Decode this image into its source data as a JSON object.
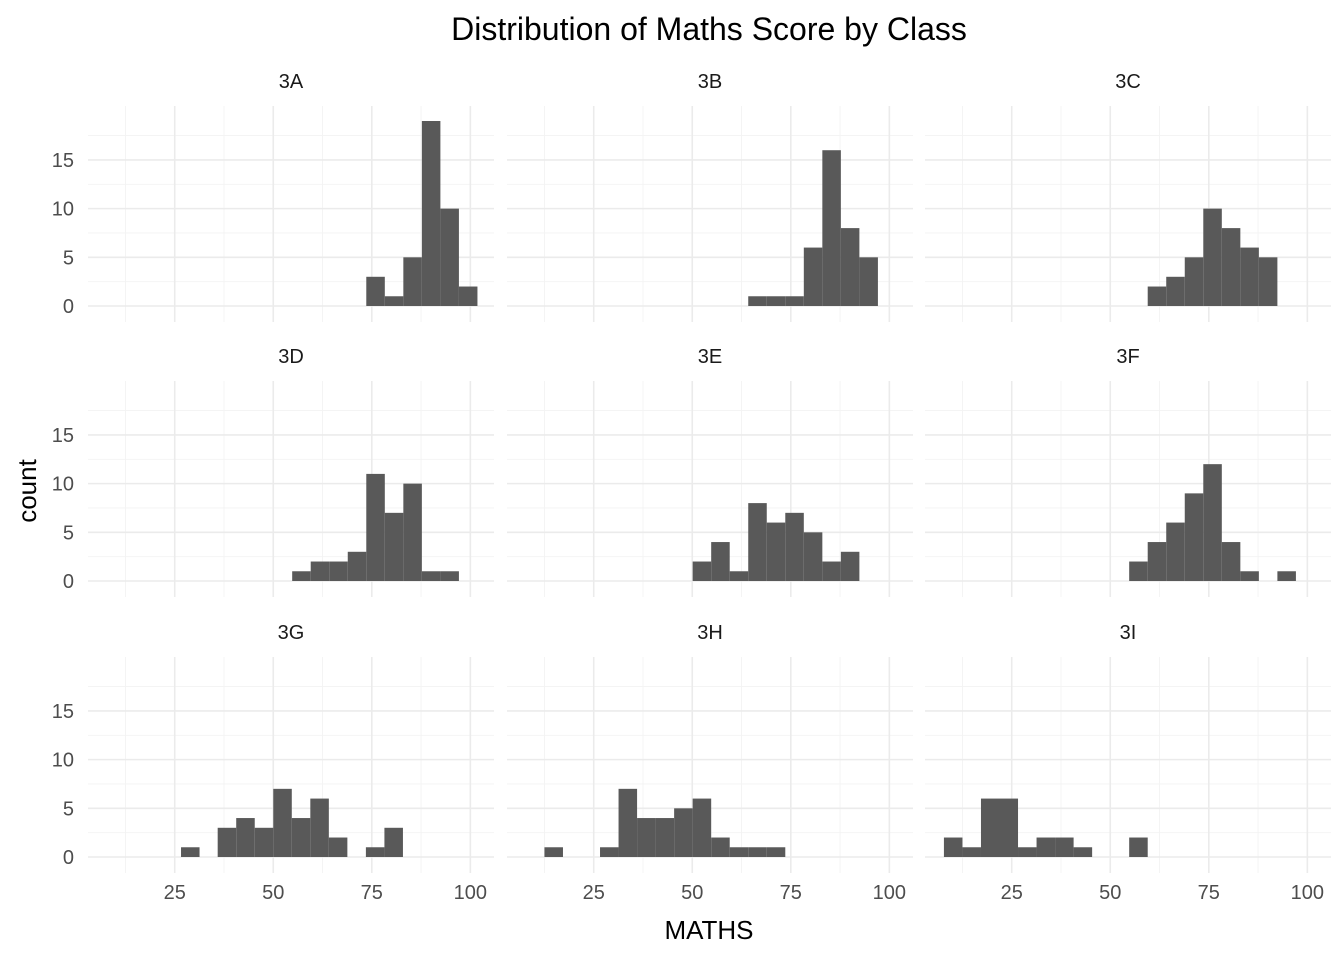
{
  "chart_data": {
    "type": "bar",
    "title": "Distribution of Maths Score by Class",
    "xlabel": "MATHS",
    "ylabel": "count",
    "xlim": [
      3,
      106
    ],
    "ylim": [
      0,
      19
    ],
    "x_ticks": [
      25,
      50,
      75,
      100
    ],
    "y_ticks": [
      0,
      5,
      10,
      15
    ],
    "grid": true,
    "bin_width": 4.7,
    "panels": [
      {
        "name": "3A",
        "bins": [
          {
            "x0": 73.6,
            "count": 3
          },
          {
            "x0": 78.3,
            "count": 1
          },
          {
            "x0": 83.0,
            "count": 5
          },
          {
            "x0": 87.7,
            "count": 19
          },
          {
            "x0": 92.4,
            "count": 10
          },
          {
            "x0": 97.1,
            "count": 2
          }
        ]
      },
      {
        "name": "3B",
        "bins": [
          {
            "x0": 64.2,
            "count": 1
          },
          {
            "x0": 68.9,
            "count": 1
          },
          {
            "x0": 73.6,
            "count": 1
          },
          {
            "x0": 78.3,
            "count": 6
          },
          {
            "x0": 83.0,
            "count": 16
          },
          {
            "x0": 87.7,
            "count": 8
          },
          {
            "x0": 92.4,
            "count": 5
          }
        ]
      },
      {
        "name": "3C",
        "bins": [
          {
            "x0": 59.5,
            "count": 2
          },
          {
            "x0": 64.2,
            "count": 3
          },
          {
            "x0": 68.9,
            "count": 5
          },
          {
            "x0": 73.6,
            "count": 10
          },
          {
            "x0": 78.3,
            "count": 8
          },
          {
            "x0": 83.0,
            "count": 6
          },
          {
            "x0": 87.7,
            "count": 5
          }
        ]
      },
      {
        "name": "3D",
        "bins": [
          {
            "x0": 54.8,
            "count": 1
          },
          {
            "x0": 59.5,
            "count": 2
          },
          {
            "x0": 64.2,
            "count": 2
          },
          {
            "x0": 68.9,
            "count": 3
          },
          {
            "x0": 73.6,
            "count": 11
          },
          {
            "x0": 78.3,
            "count": 7
          },
          {
            "x0": 83.0,
            "count": 10
          },
          {
            "x0": 87.7,
            "count": 1
          },
          {
            "x0": 92.4,
            "count": 1
          }
        ]
      },
      {
        "name": "3E",
        "bins": [
          {
            "x0": 50.1,
            "count": 2
          },
          {
            "x0": 54.8,
            "count": 4
          },
          {
            "x0": 59.5,
            "count": 1
          },
          {
            "x0": 64.2,
            "count": 8
          },
          {
            "x0": 68.9,
            "count": 6
          },
          {
            "x0": 73.6,
            "count": 7
          },
          {
            "x0": 78.3,
            "count": 5
          },
          {
            "x0": 83.0,
            "count": 2
          },
          {
            "x0": 87.7,
            "count": 3
          }
        ]
      },
      {
        "name": "3F",
        "bins": [
          {
            "x0": 54.8,
            "count": 2
          },
          {
            "x0": 59.5,
            "count": 4
          },
          {
            "x0": 64.2,
            "count": 6
          },
          {
            "x0": 68.9,
            "count": 9
          },
          {
            "x0": 73.6,
            "count": 12
          },
          {
            "x0": 78.3,
            "count": 4
          },
          {
            "x0": 83.0,
            "count": 1
          },
          {
            "x0": 92.4,
            "count": 1
          }
        ]
      },
      {
        "name": "3G",
        "bins": [
          {
            "x0": 26.6,
            "count": 1
          },
          {
            "x0": 35.9,
            "count": 3
          },
          {
            "x0": 40.6,
            "count": 4
          },
          {
            "x0": 45.3,
            "count": 3
          },
          {
            "x0": 50.0,
            "count": 7
          },
          {
            "x0": 54.7,
            "count": 4
          },
          {
            "x0": 59.4,
            "count": 6
          },
          {
            "x0": 64.1,
            "count": 2
          },
          {
            "x0": 73.5,
            "count": 1
          },
          {
            "x0": 78.2,
            "count": 3
          }
        ]
      },
      {
        "name": "3H",
        "bins": [
          {
            "x0": 12.5,
            "count": 1
          },
          {
            "x0": 26.6,
            "count": 1
          },
          {
            "x0": 31.3,
            "count": 7
          },
          {
            "x0": 36.0,
            "count": 4
          },
          {
            "x0": 40.7,
            "count": 4
          },
          {
            "x0": 45.4,
            "count": 5
          },
          {
            "x0": 50.1,
            "count": 6
          },
          {
            "x0": 54.8,
            "count": 2
          },
          {
            "x0": 59.5,
            "count": 1
          },
          {
            "x0": 64.2,
            "count": 1
          },
          {
            "x0": 68.9,
            "count": 1
          }
        ]
      },
      {
        "name": "3I",
        "bins": [
          {
            "x0": 7.8,
            "count": 2
          },
          {
            "x0": 12.5,
            "count": 1
          },
          {
            "x0": 17.2,
            "count": 6
          },
          {
            "x0": 21.9,
            "count": 6
          },
          {
            "x0": 26.6,
            "count": 1
          },
          {
            "x0": 31.3,
            "count": 2
          },
          {
            "x0": 36.0,
            "count": 2
          },
          {
            "x0": 40.7,
            "count": 1
          },
          {
            "x0": 54.8,
            "count": 2
          }
        ]
      }
    ]
  }
}
